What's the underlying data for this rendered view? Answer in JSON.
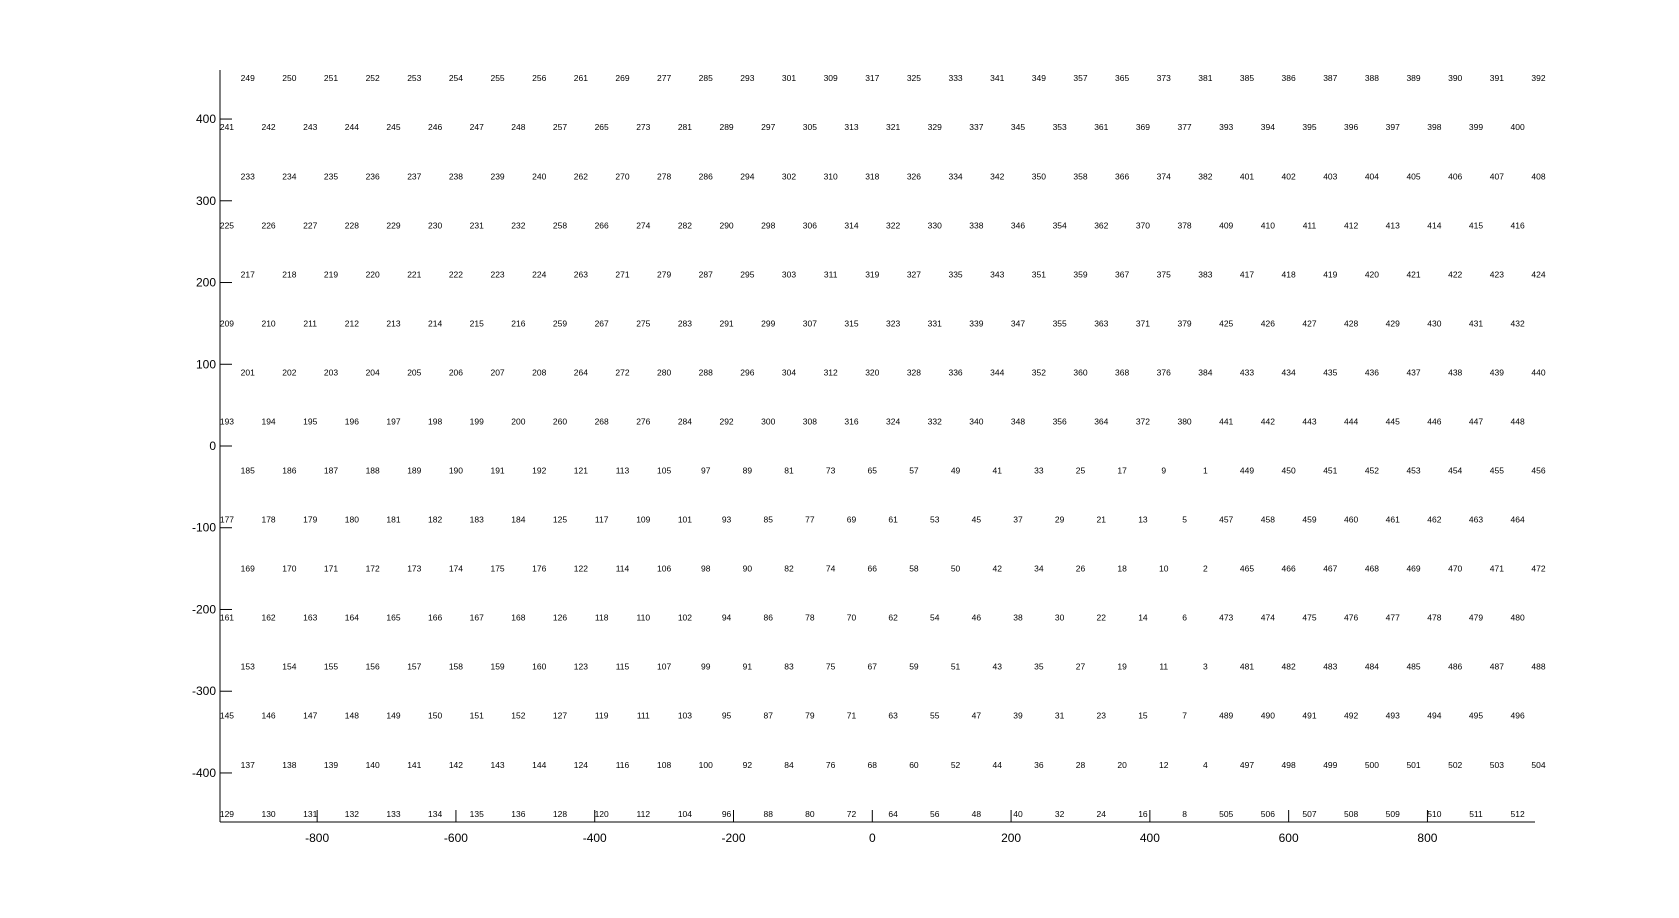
{
  "chart_data": {
    "type": "scatter",
    "title": "",
    "xlabel": "",
    "ylabel": "",
    "xlim": [
      -940,
      955
    ],
    "ylim": [
      -460,
      460
    ],
    "grid": false,
    "x_ticks": [
      -800,
      -600,
      -400,
      -200,
      0,
      200,
      400,
      600,
      800
    ],
    "y_ticks": [
      -400,
      -300,
      -200,
      -100,
      0,
      100,
      200,
      300,
      400
    ],
    "x_tick_labels": [
      "-800",
      "-600",
      "-400",
      "-200",
      "0",
      "200",
      "400",
      "600",
      "800"
    ],
    "y_tick_labels": [
      "-400",
      "-300",
      "-200",
      "-100",
      "0",
      "100",
      "200",
      "300",
      "400"
    ],
    "row_y": [
      450,
      390,
      330,
      270,
      210,
      150,
      90,
      30,
      -30,
      -90,
      -150,
      -210,
      -270,
      -330,
      -390,
      -450
    ],
    "col_x_odd": [
      -900,
      -840,
      -780,
      -720,
      -660,
      -600,
      -540,
      -480,
      -420,
      -360,
      -300,
      -240,
      -180,
      -120,
      -60,
      0,
      60,
      120,
      180,
      240,
      300,
      360,
      420,
      480,
      540,
      600,
      660,
      720,
      780,
      840,
      900,
      960
    ],
    "col_x_even": [
      -930,
      -870,
      -810,
      -750,
      -690,
      -630,
      -570,
      -510,
      -450,
      -390,
      -330,
      -270,
      -210,
      -150,
      -90,
      -30,
      30,
      90,
      150,
      210,
      270,
      330,
      390,
      450,
      510,
      570,
      630,
      690,
      750,
      810,
      870,
      930
    ],
    "rows": [
      [
        "249",
        "250",
        "251",
        "252",
        "253",
        "254",
        "255",
        "256",
        "261",
        "269",
        "277",
        "285",
        "293",
        "301",
        "309",
        "317",
        "325",
        "333",
        "341",
        "349",
        "357",
        "365",
        "373",
        "381",
        "385",
        "386",
        "387",
        "388",
        "389",
        "390",
        "391",
        "392"
      ],
      [
        "241",
        "242",
        "243",
        "244",
        "245",
        "246",
        "247",
        "248",
        "257",
        "265",
        "273",
        "281",
        "289",
        "297",
        "305",
        "313",
        "321",
        "329",
        "337",
        "345",
        "353",
        "361",
        "369",
        "377",
        "393",
        "394",
        "395",
        "396",
        "397",
        "398",
        "399",
        "400"
      ],
      [
        "233",
        "234",
        "235",
        "236",
        "237",
        "238",
        "239",
        "240",
        "262",
        "270",
        "278",
        "286",
        "294",
        "302",
        "310",
        "318",
        "326",
        "334",
        "342",
        "350",
        "358",
        "366",
        "374",
        "382",
        "401",
        "402",
        "403",
        "404",
        "405",
        "406",
        "407",
        "408"
      ],
      [
        "225",
        "226",
        "227",
        "228",
        "229",
        "230",
        "231",
        "232",
        "258",
        "266",
        "274",
        "282",
        "290",
        "298",
        "306",
        "314",
        "322",
        "330",
        "338",
        "346",
        "354",
        "362",
        "370",
        "378",
        "409",
        "410",
        "411",
        "412",
        "413",
        "414",
        "415",
        "416"
      ],
      [
        "217",
        "218",
        "219",
        "220",
        "221",
        "222",
        "223",
        "224",
        "263",
        "271",
        "279",
        "287",
        "295",
        "303",
        "311",
        "319",
        "327",
        "335",
        "343",
        "351",
        "359",
        "367",
        "375",
        "383",
        "417",
        "418",
        "419",
        "420",
        "421",
        "422",
        "423",
        "424"
      ],
      [
        "209",
        "210",
        "211",
        "212",
        "213",
        "214",
        "215",
        "216",
        "259",
        "267",
        "275",
        "283",
        "291",
        "299",
        "307",
        "315",
        "323",
        "331",
        "339",
        "347",
        "355",
        "363",
        "371",
        "379",
        "425",
        "426",
        "427",
        "428",
        "429",
        "430",
        "431",
        "432"
      ],
      [
        "201",
        "202",
        "203",
        "204",
        "205",
        "206",
        "207",
        "208",
        "264",
        "272",
        "280",
        "288",
        "296",
        "304",
        "312",
        "320",
        "328",
        "336",
        "344",
        "352",
        "360",
        "368",
        "376",
        "384",
        "433",
        "434",
        "435",
        "436",
        "437",
        "438",
        "439",
        "440"
      ],
      [
        "193",
        "194",
        "195",
        "196",
        "197",
        "198",
        "199",
        "200",
        "260",
        "268",
        "276",
        "284",
        "292",
        "300",
        "308",
        "316",
        "324",
        "332",
        "340",
        "348",
        "356",
        "364",
        "372",
        "380",
        "441",
        "442",
        "443",
        "444",
        "445",
        "446",
        "447",
        "448"
      ],
      [
        "185",
        "186",
        "187",
        "188",
        "189",
        "190",
        "191",
        "192",
        "121",
        "113",
        "105",
        "97",
        "89",
        "81",
        "73",
        "65",
        "57",
        "49",
        "41",
        "33",
        "25",
        "17",
        "9",
        "1",
        "449",
        "450",
        "451",
        "452",
        "453",
        "454",
        "455",
        "456"
      ],
      [
        "177",
        "178",
        "179",
        "180",
        "181",
        "182",
        "183",
        "184",
        "125",
        "117",
        "109",
        "101",
        "93",
        "85",
        "77",
        "69",
        "61",
        "53",
        "45",
        "37",
        "29",
        "21",
        "13",
        "5",
        "457",
        "458",
        "459",
        "460",
        "461",
        "462",
        "463",
        "464"
      ],
      [
        "169",
        "170",
        "171",
        "172",
        "173",
        "174",
        "175",
        "176",
        "122",
        "114",
        "106",
        "98",
        "90",
        "82",
        "74",
        "66",
        "58",
        "50",
        "42",
        "34",
        "26",
        "18",
        "10",
        "2",
        "465",
        "466",
        "467",
        "468",
        "469",
        "470",
        "471",
        "472"
      ],
      [
        "161",
        "162",
        "163",
        "164",
        "165",
        "166",
        "167",
        "168",
        "126",
        "118",
        "110",
        "102",
        "94",
        "86",
        "78",
        "70",
        "62",
        "54",
        "46",
        "38",
        "30",
        "22",
        "14",
        "6",
        "473",
        "474",
        "475",
        "476",
        "477",
        "478",
        "479",
        "480"
      ],
      [
        "153",
        "154",
        "155",
        "156",
        "157",
        "158",
        "159",
        "160",
        "123",
        "115",
        "107",
        "99",
        "91",
        "83",
        "75",
        "67",
        "59",
        "51",
        "43",
        "35",
        "27",
        "19",
        "11",
        "3",
        "481",
        "482",
        "483",
        "484",
        "485",
        "486",
        "487",
        "488"
      ],
      [
        "145",
        "146",
        "147",
        "148",
        "149",
        "150",
        "151",
        "152",
        "127",
        "119",
        "111",
        "103",
        "95",
        "87",
        "79",
        "71",
        "63",
        "55",
        "47",
        "39",
        "31",
        "23",
        "15",
        "7",
        "489",
        "490",
        "491",
        "492",
        "493",
        "494",
        "495",
        "496"
      ],
      [
        "137",
        "138",
        "139",
        "140",
        "141",
        "142",
        "143",
        "144",
        "124",
        "116",
        "108",
        "100",
        "92",
        "84",
        "76",
        "68",
        "60",
        "52",
        "44",
        "36",
        "28",
        "20",
        "12",
        "4",
        "497",
        "498",
        "499",
        "500",
        "501",
        "502",
        "503",
        "504"
      ],
      [
        "129",
        "130",
        "131",
        "132",
        "133",
        "134",
        "135",
        "136",
        "128",
        "120",
        "112",
        "104",
        "96",
        "88",
        "80",
        "72",
        "64",
        "56",
        "48",
        "40",
        "32",
        "24",
        "16",
        "8",
        "505",
        "506",
        "507",
        "508",
        "509",
        "510",
        "511",
        "512"
      ]
    ]
  }
}
